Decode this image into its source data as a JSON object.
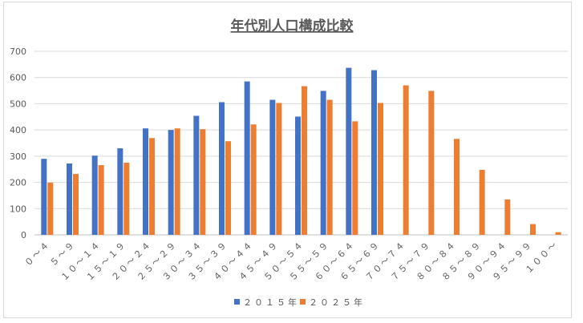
{
  "chart_data": {
    "type": "bar",
    "title": "年代別人口構成比較",
    "xlabel": "",
    "ylabel": "",
    "ylim": [
      0,
      700
    ],
    "yticks": [
      0,
      100,
      200,
      300,
      400,
      500,
      600,
      700
    ],
    "grid": true,
    "legend_position": "bottom",
    "categories": [
      "０〜４",
      "５〜９",
      "１０〜１４",
      "１５〜１９",
      "２０〜２４",
      "２５〜２９",
      "３０〜３４",
      "３５〜３９",
      "４０〜４４",
      "４５〜４９",
      "５０〜５４",
      "５５〜５９",
      "６０〜６４",
      "６５〜６９",
      "７０〜７４",
      "７５〜７９",
      "８０〜８４",
      "８５〜８９",
      "９０〜９４",
      "９５〜９９",
      "１００〜"
    ],
    "series": [
      {
        "name": "２０１５年",
        "color": "#4472c4",
        "values": [
          290,
          272,
          302,
          330,
          406,
          400,
          454,
          506,
          585,
          515,
          451,
          549,
          637,
          628,
          0,
          0,
          0,
          0,
          0,
          0,
          0
        ]
      },
      {
        "name": "２０２５年",
        "color": "#ed7d31",
        "values": [
          199,
          232,
          266,
          275,
          369,
          406,
          403,
          357,
          421,
          503,
          567,
          515,
          433,
          503,
          570,
          549,
          366,
          248,
          135,
          41,
          10
        ]
      }
    ]
  }
}
